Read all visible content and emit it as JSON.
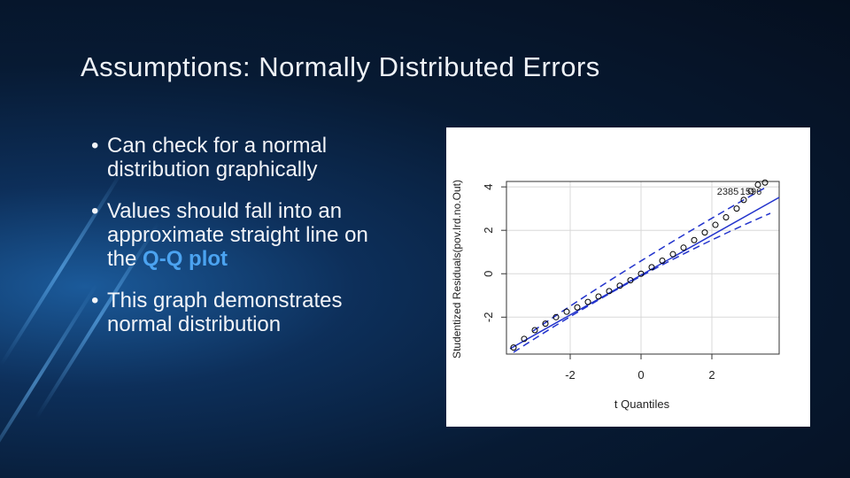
{
  "slide": {
    "title": "Assumptions: Normally Distributed Errors",
    "bullets": [
      {
        "text": "Can check for a normal distribution graphically"
      },
      {
        "text": "Values should fall into an approximate straight line on the",
        "emphasis": "Q-Q plot"
      },
      {
        "text": "This graph demonstrates normal distribution"
      }
    ]
  },
  "chart_data": {
    "type": "scatter",
    "x_label": "t Quantiles",
    "y_label": "Studentized Residuals(pov.lrd.no.Out)",
    "x": [
      -3.6,
      -3.3,
      -3.0,
      -2.7,
      -2.4,
      -2.1,
      -1.8,
      -1.5,
      -1.2,
      -0.9,
      -0.6,
      -0.3,
      0,
      0.3,
      0.6,
      0.9,
      1.2,
      1.5,
      1.8,
      2.1,
      2.4,
      2.7,
      2.9,
      3.1,
      3.3,
      3.5
    ],
    "values": [
      -3.4,
      -3.0,
      -2.6,
      -2.3,
      -2.0,
      -1.75,
      -1.55,
      -1.3,
      -1.05,
      -0.8,
      -0.55,
      -0.3,
      0,
      0.3,
      0.6,
      0.9,
      1.2,
      1.55,
      1.9,
      2.25,
      2.6,
      3.0,
      3.4,
      3.8,
      4.1,
      4.2
    ],
    "color": "#000000",
    "xlim": [
      -3.8,
      3.9
    ],
    "ylim": [
      -3.7,
      4.25
    ],
    "xticks": [
      -2,
      0,
      2
    ],
    "yticks": [
      -2,
      0,
      2,
      4
    ],
    "grid": true,
    "annotations": [
      "2385",
      "1596"
    ]
  }
}
